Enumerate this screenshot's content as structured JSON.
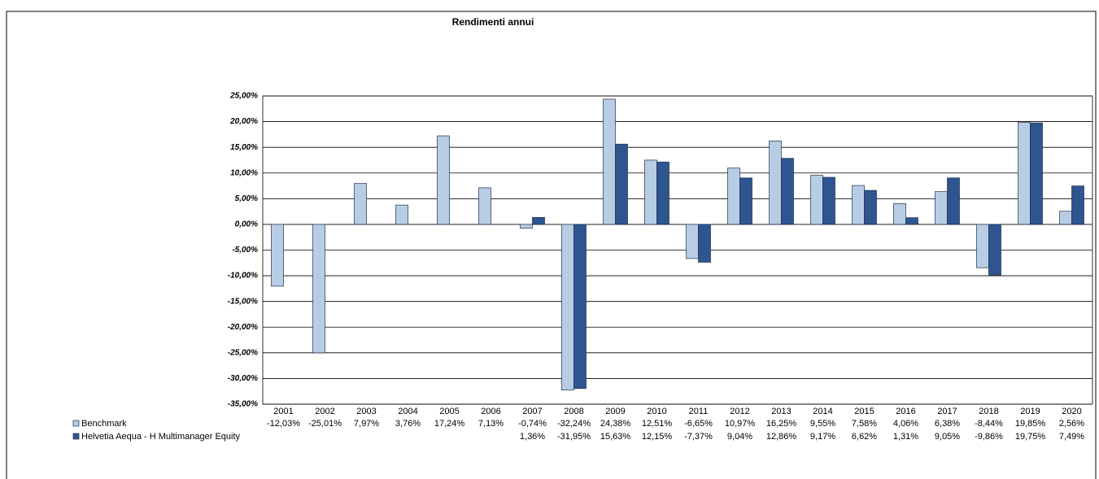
{
  "chart_data": {
    "type": "bar",
    "title": "Rendimenti annui",
    "categories": [
      "2001",
      "2002",
      "2003",
      "2004",
      "2005",
      "2006",
      "2007",
      "2008",
      "2009",
      "2010",
      "2011",
      "2012",
      "2013",
      "2014",
      "2015",
      "2016",
      "2017",
      "2018",
      "2019",
      "2020"
    ],
    "series": [
      {
        "name": "Benchmark",
        "color": "#b8cce4",
        "values": [
          -12.03,
          -25.01,
          7.97,
          3.76,
          17.24,
          7.13,
          -0.74,
          -32.24,
          24.38,
          12.51,
          -6.65,
          10.97,
          16.25,
          9.55,
          7.58,
          4.06,
          6.38,
          -8.44,
          19.85,
          2.56
        ],
        "value_labels": [
          "-12,03%",
          "-25,01%",
          "7,97%",
          "3,76%",
          "17,24%",
          "7,13%",
          "-0,74%",
          "-32,24%",
          "24,38%",
          "12,51%",
          "-6,65%",
          "10,97%",
          "16,25%",
          "9,55%",
          "7,58%",
          "4,06%",
          "6,38%",
          "-8,44%",
          "19,85%",
          "2,56%"
        ]
      },
      {
        "name": "Helvetia Aequa - H Multimanager Equity",
        "color": "#2e5590",
        "values": [
          null,
          null,
          null,
          null,
          null,
          null,
          1.36,
          -31.95,
          15.63,
          12.15,
          -7.37,
          9.04,
          12.86,
          9.17,
          6.62,
          1.31,
          9.05,
          -9.86,
          19.75,
          7.49
        ],
        "value_labels": [
          null,
          null,
          null,
          null,
          null,
          null,
          "1,36%",
          "-31,95%",
          "15,63%",
          "12,15%",
          "-7,37%",
          "9,04%",
          "12,86%",
          "9,17%",
          "6,62%",
          "1,31%",
          "9,05%",
          "-9,86%",
          "19,75%",
          "7,49%"
        ]
      }
    ],
    "ylim": [
      -35,
      25
    ],
    "yticks": [
      {
        "value": -35,
        "label": "-35,00%"
      },
      {
        "value": -30,
        "label": "-30,00%"
      },
      {
        "value": -25,
        "label": "-25,00%"
      },
      {
        "value": -20,
        "label": "-20,00%"
      },
      {
        "value": -15,
        "label": "-15,00%"
      },
      {
        "value": -10,
        "label": "-10,00%"
      },
      {
        "value": -5,
        "label": "-5,00%"
      },
      {
        "value": 0,
        "label": "0,00%"
      },
      {
        "value": 5,
        "label": "5,00%"
      },
      {
        "value": 10,
        "label": "10,00%"
      },
      {
        "value": 15,
        "label": "15,00%"
      },
      {
        "value": 20,
        "label": "20,00%"
      },
      {
        "value": 25,
        "label": "25,00%"
      }
    ],
    "grid": true
  }
}
